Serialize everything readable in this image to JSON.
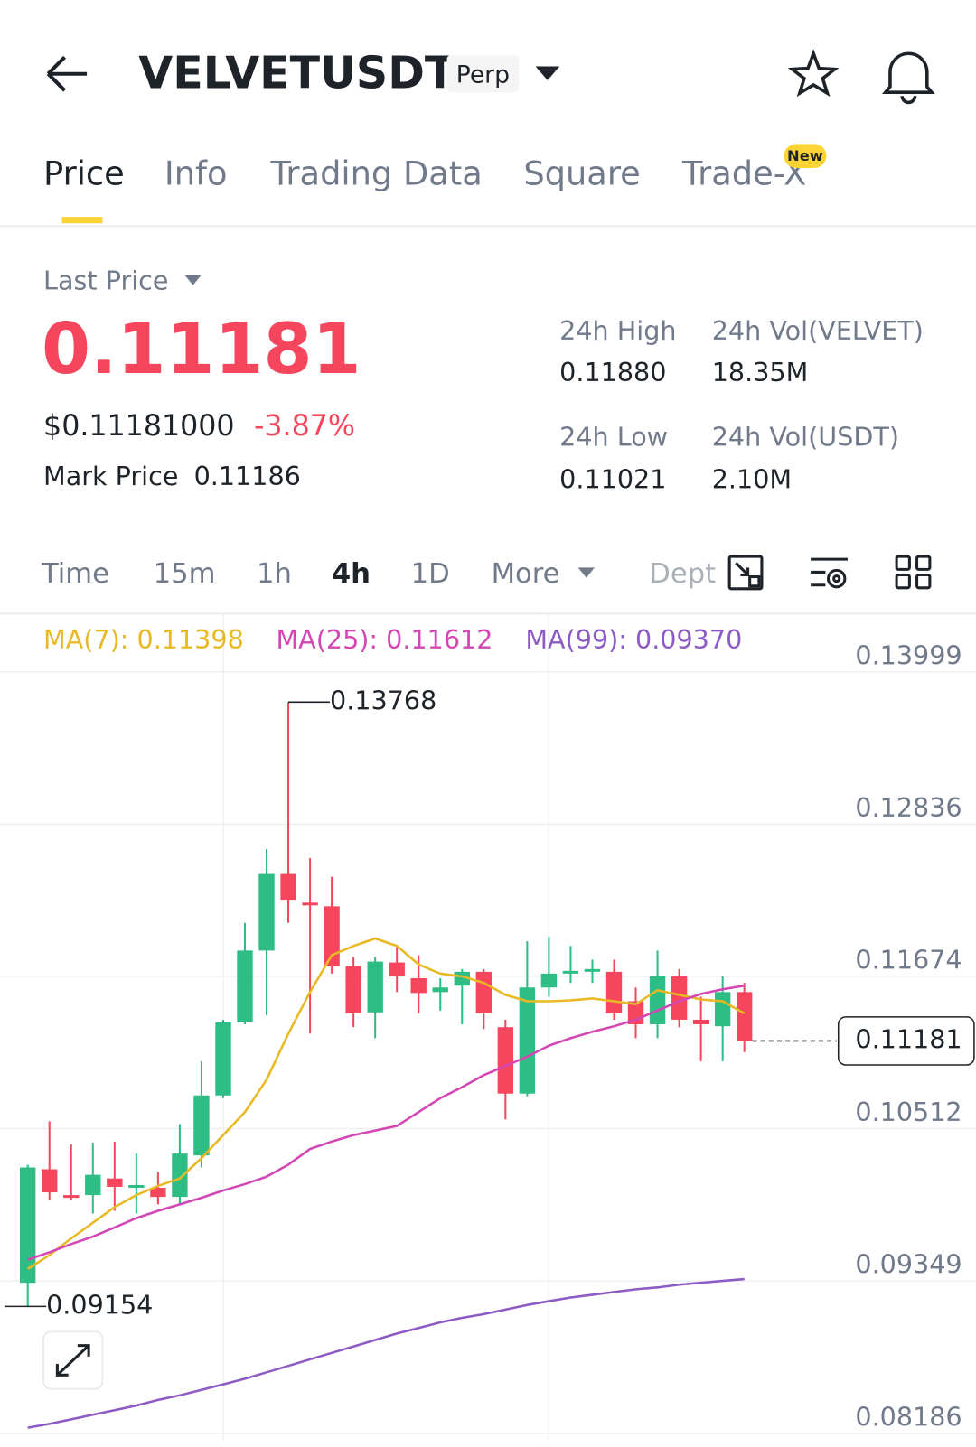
{
  "header": {
    "symbol": "VELVETUSDT",
    "badge": "Perp"
  },
  "tabs": {
    "items": [
      "Price",
      "Info",
      "Trading Data",
      "Square",
      "Trade-X"
    ],
    "badge": "New"
  },
  "price": {
    "label": "Last Price",
    "last": "0.11181",
    "usd": "$0.11181000",
    "change": "-3.87%",
    "mark_label": "Mark Price",
    "mark": "0.11186"
  },
  "stats": [
    {
      "label": "24h High",
      "value": "0.11880"
    },
    {
      "label": "24h Vol(VELVET)",
      "value": "18.35M"
    },
    {
      "label": "24h Low",
      "value": "0.11021"
    },
    {
      "label": "24h Vol(USDT)",
      "value": "2.10M"
    }
  ],
  "intervals": [
    "Time",
    "15m",
    "1h",
    "4h",
    "1D",
    "More",
    "Dept"
  ],
  "chart_data": {
    "type": "candlestick",
    "ylim": [
      0.08137,
      0.14443
    ],
    "yticks": [
      0.13999,
      0.12836,
      0.11674,
      0.10512,
      0.09349,
      0.08186
    ],
    "grid": true,
    "up_color": "#2ebd85",
    "down_color": "#f6465d",
    "open": [
      0.09334,
      0.10201,
      0.10004,
      0.10004,
      0.10131,
      0.1006,
      0.1006,
      0.0999,
      0.10307,
      0.10765,
      0.11322,
      0.11871,
      0.12456,
      0.12237,
      0.12209,
      0.11751,
      0.11399,
      0.1178,
      0.1166,
      0.11554,
      0.11603,
      0.11709,
      0.11286,
      0.10779,
      0.11589,
      0.11695,
      0.11709,
      0.11709,
      0.11484,
      0.11308,
      0.11674,
      0.11343,
      0.11293,
      0.11554
    ],
    "high": [
      0.10236,
      0.10568,
      0.10391,
      0.10405,
      0.10412,
      0.10321,
      0.1018,
      0.10546,
      0.11026,
      0.11343,
      0.12082,
      0.12646,
      0.13768,
      0.12576,
      0.12435,
      0.11822,
      0.11822,
      0.11906,
      0.11836,
      0.1166,
      0.1173,
      0.1173,
      0.11343,
      0.11942,
      0.11977,
      0.11906,
      0.11801,
      0.11801,
      0.11589,
      0.11871,
      0.1173,
      0.11519,
      0.11674,
      0.11624
    ],
    "low": [
      0.09154,
      0.09969,
      0.09969,
      0.09863,
      0.09884,
      0.09863,
      0.09933,
      0.09933,
      0.10215,
      0.10744,
      0.11308,
      0.11378,
      0.12082,
      0.11237,
      0.11695,
      0.11286,
      0.11202,
      0.11554,
      0.11392,
      0.11413,
      0.11308,
      0.11272,
      0.10582,
      0.10758,
      0.11519,
      0.11624,
      0.11624,
      0.11343,
      0.11202,
      0.11202,
      0.11286,
      0.11026,
      0.11026,
      0.11096
    ],
    "close": [
      0.10215,
      0.10025,
      0.09983,
      0.10159,
      0.10067,
      0.10081,
      0.0999,
      0.10321,
      0.10765,
      0.11322,
      0.11871,
      0.12456,
      0.12259,
      0.12216,
      0.11751,
      0.11392,
      0.11787,
      0.11674,
      0.11547,
      0.11589,
      0.11709,
      0.11392,
      0.10779,
      0.11589,
      0.11695,
      0.11716,
      0.1173,
      0.11392,
      0.11308,
      0.11674,
      0.11343,
      0.11308,
      0.11554,
      0.11181
    ],
    "series": [
      {
        "name": "MA(7): 0.11398",
        "color": "#e8b923",
        "values": [
          0.0944,
          0.09546,
          0.09673,
          0.09793,
          0.09912,
          0.10004,
          0.10074,
          0.10131,
          0.10286,
          0.10462,
          0.10638,
          0.10885,
          0.11237,
          0.11554,
          0.11836,
          0.11906,
          0.11963,
          0.11906,
          0.11765,
          0.11695,
          0.11674,
          0.11624,
          0.11533,
          0.11484,
          0.11484,
          0.11491,
          0.11505,
          0.11484,
          0.11462,
          0.11568,
          0.11533,
          0.11498,
          0.11484,
          0.11392
        ]
      },
      {
        "name": "MA(25): 0.11612",
        "color": "#d346b4",
        "values": [
          0.09511,
          0.09567,
          0.0963,
          0.09687,
          0.09757,
          0.09828,
          0.09884,
          0.09933,
          0.09983,
          0.10039,
          0.10088,
          0.10145,
          0.10236,
          0.10356,
          0.10413,
          0.10462,
          0.10497,
          0.10532,
          0.10638,
          0.10744,
          0.10828,
          0.1092,
          0.1099,
          0.11061,
          0.11145,
          0.11202,
          0.11251,
          0.11293,
          0.11343,
          0.11413,
          0.11484,
          0.1154,
          0.11575,
          0.11603
        ]
      },
      {
        "name": "MA(99): 0.09370",
        "color": "#8c5cc4",
        "values": [
          0.08228,
          0.08257,
          0.08292,
          0.08327,
          0.08362,
          0.08397,
          0.0844,
          0.08475,
          0.08517,
          0.08559,
          0.08602,
          0.08651,
          0.087,
          0.0875,
          0.08799,
          0.08848,
          0.08898,
          0.08947,
          0.08989,
          0.09032,
          0.09067,
          0.09095,
          0.0913,
          0.09165,
          0.09194,
          0.09222,
          0.09243,
          0.09264,
          0.09285,
          0.09299,
          0.0932,
          0.09335,
          0.09349,
          0.09363
        ]
      }
    ],
    "high_label": 0.13768,
    "low_label": 0.09154,
    "last_label": 0.11181
  }
}
